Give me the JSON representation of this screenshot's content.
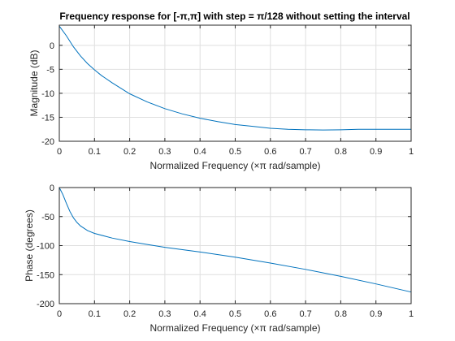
{
  "figure": {
    "background": "#ffffff",
    "grid_color": "#dfdfdf",
    "axis_color": "#262626",
    "line_color": "#0072bd"
  },
  "chart_data": [
    {
      "type": "line",
      "title": "Frequency response for [-π,π] with step = π/128 without setting the interval",
      "xlabel": "Normalized Frequency  (×π rad/sample)",
      "ylabel": "Magnitude (dB)",
      "xlim": [
        0,
        1
      ],
      "ylim": [
        -20,
        4.2
      ],
      "xticks": [
        0,
        0.1,
        0.2,
        0.3,
        0.4,
        0.5,
        0.6,
        0.7,
        0.8,
        0.9,
        1
      ],
      "xtick_labels": [
        "0",
        "0.1",
        "0.2",
        "0.3",
        "0.4",
        "0.5",
        "0.6",
        "0.7",
        "0.8",
        "0.9",
        "1"
      ],
      "yticks": [
        0,
        -5,
        -10,
        -15,
        -20
      ],
      "ytick_labels": [
        "0",
        "-5",
        "-10",
        "-15",
        "-20"
      ],
      "grid": true,
      "series": [
        {
          "x": [
            0,
            0.02,
            0.04,
            0.06,
            0.08,
            0.1,
            0.12,
            0.15,
            0.2,
            0.25,
            0.3,
            0.35,
            0.4,
            0.45,
            0.5,
            0.55,
            0.6,
            0.65,
            0.7,
            0.75,
            0.8,
            0.85,
            0.9,
            0.95,
            1
          ],
          "y": [
            4.0,
            2.0,
            -0.3,
            -2.2,
            -3.8,
            -5.1,
            -6.3,
            -7.8,
            -10.1,
            -11.8,
            -13.2,
            -14.3,
            -15.2,
            -15.9,
            -16.5,
            -16.9,
            -17.3,
            -17.5,
            -17.6,
            -17.65,
            -17.6,
            -17.5,
            -17.5,
            -17.5,
            -17.5
          ]
        }
      ]
    },
    {
      "type": "line",
      "xlabel": "Normalized Frequency  (×π rad/sample)",
      "ylabel": "Phase (degrees)",
      "xlim": [
        0,
        1
      ],
      "ylim": [
        -200,
        0
      ],
      "xticks": [
        0,
        0.1,
        0.2,
        0.3,
        0.4,
        0.5,
        0.6,
        0.7,
        0.8,
        0.9,
        1
      ],
      "xtick_labels": [
        "0",
        "0.1",
        "0.2",
        "0.3",
        "0.4",
        "0.5",
        "0.6",
        "0.7",
        "0.8",
        "0.9",
        "1"
      ],
      "yticks": [
        0,
        -50,
        -100,
        -150,
        -200
      ],
      "ytick_labels": [
        "0",
        "-50",
        "-100",
        "-150",
        "-200"
      ],
      "grid": true,
      "series": [
        {
          "x": [
            0,
            0.01,
            0.02,
            0.03,
            0.04,
            0.05,
            0.06,
            0.08,
            0.1,
            0.15,
            0.2,
            0.25,
            0.3,
            0.4,
            0.5,
            0.6,
            0.7,
            0.8,
            0.9,
            1
          ],
          "y": [
            0,
            -12,
            -27,
            -41,
            -52,
            -60,
            -66,
            -74,
            -79,
            -87,
            -93,
            -98,
            -103,
            -111,
            -120,
            -130,
            -141,
            -153,
            -166,
            -180
          ]
        }
      ]
    }
  ]
}
